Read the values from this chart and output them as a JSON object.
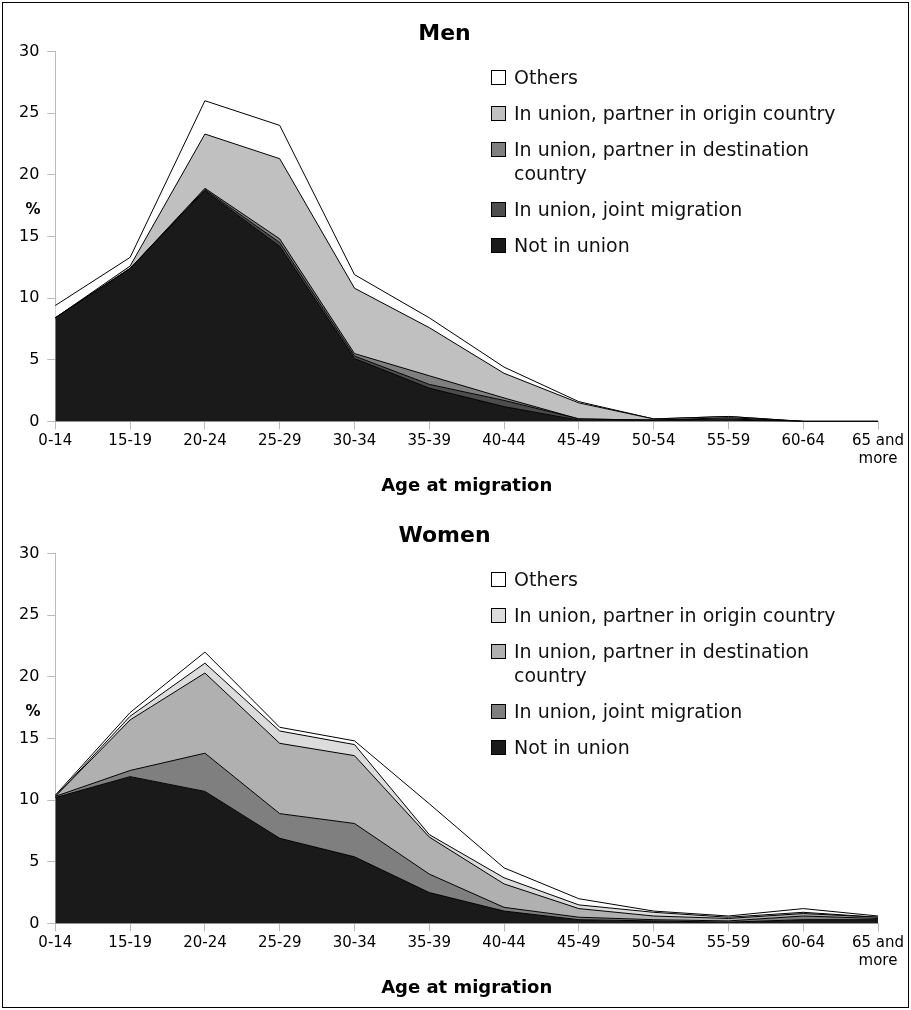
{
  "chart_data": [
    {
      "type": "area",
      "title": "Men",
      "xlabel": "Age at migration",
      "ylabel": "%",
      "stacked": true,
      "legend": "top right",
      "ylim": [
        0,
        30
      ],
      "yticks": [
        0,
        5,
        10,
        15,
        20,
        25,
        30
      ],
      "categories": [
        "0-14",
        "15-19",
        "20-24",
        "25-29",
        "30-34",
        "35-39",
        "40-44",
        "45-49",
        "50-54",
        "55-59",
        "60-64",
        "65 and more"
      ],
      "series": [
        {
          "name": "Not in union",
          "color": "#1a1a1a",
          "values": [
            8.4,
            12.4,
            18.7,
            14.2,
            5.1,
            2.7,
            1.2,
            0.1,
            0.1,
            0.1,
            0,
            0
          ]
        },
        {
          "name": "In union, joint migration",
          "color": "#4d4d4d",
          "values": [
            0,
            0,
            0.1,
            0.3,
            0.2,
            0.3,
            0.5,
            0.1,
            0,
            0.1,
            0,
            0
          ]
        },
        {
          "name": "In union, partner in destination country",
          "color": "#7f7f7f",
          "values": [
            0,
            0,
            0.1,
            0.3,
            0.2,
            0.7,
            0.2,
            0,
            0,
            0.1,
            0,
            0
          ]
        },
        {
          "name": "In union, partner in origin country",
          "color": "#c0c0c0",
          "values": [
            0,
            0.2,
            4.4,
            6.5,
            5.3,
            3.9,
            2.0,
            1.3,
            0.1,
            0.1,
            0,
            0
          ]
        },
        {
          "name": "Others",
          "color": "#ffffff",
          "values": [
            1.0,
            0.7,
            2.7,
            2.7,
            1.1,
            0.8,
            0.5,
            0.1,
            0,
            0,
            0,
            0
          ]
        }
      ]
    },
    {
      "type": "area",
      "title": "Women",
      "xlabel": "Age at migration",
      "ylabel": "%",
      "stacked": true,
      "legend": "top right",
      "ylim": [
        0,
        30
      ],
      "yticks": [
        0,
        5,
        10,
        15,
        20,
        25,
        30
      ],
      "categories": [
        "0-14",
        "15-19",
        "20-24",
        "25-29",
        "30-34",
        "35-39",
        "40-44",
        "45-49",
        "50-54",
        "55-59",
        "60-64",
        "65 and more"
      ],
      "series": [
        {
          "name": "Not in union",
          "color": "#1a1a1a",
          "values": [
            10.2,
            11.9,
            10.7,
            6.9,
            5.4,
            2.5,
            1.0,
            0.3,
            0.2,
            0.1,
            0.3,
            0.3
          ]
        },
        {
          "name": "In union, joint migration",
          "color": "#7f7f7f",
          "values": [
            0.1,
            0.5,
            3.1,
            2.0,
            2.7,
            1.5,
            0.3,
            0.2,
            0.1,
            0.1,
            0.3,
            0.1
          ]
        },
        {
          "name": "In union, partner in destination country",
          "color": "#b0b0b0",
          "values": [
            0,
            4.1,
            6.5,
            5.7,
            5.5,
            3.0,
            1.9,
            0.7,
            0.3,
            0.2,
            0.2,
            0.1
          ]
        },
        {
          "name": "In union, partner in origin country",
          "color": "#dcdcdc",
          "values": [
            0,
            0.3,
            0.8,
            1.0,
            0.9,
            0.2,
            0.5,
            0.3,
            0.3,
            0.1,
            0.1,
            0
          ]
        },
        {
          "name": "Others",
          "color": "#ffffff",
          "values": [
            0.1,
            0.3,
            0.9,
            0.3,
            0.3,
            2.5,
            0.8,
            0.5,
            0.1,
            0.1,
            0.3,
            0.1
          ]
        }
      ]
    }
  ]
}
